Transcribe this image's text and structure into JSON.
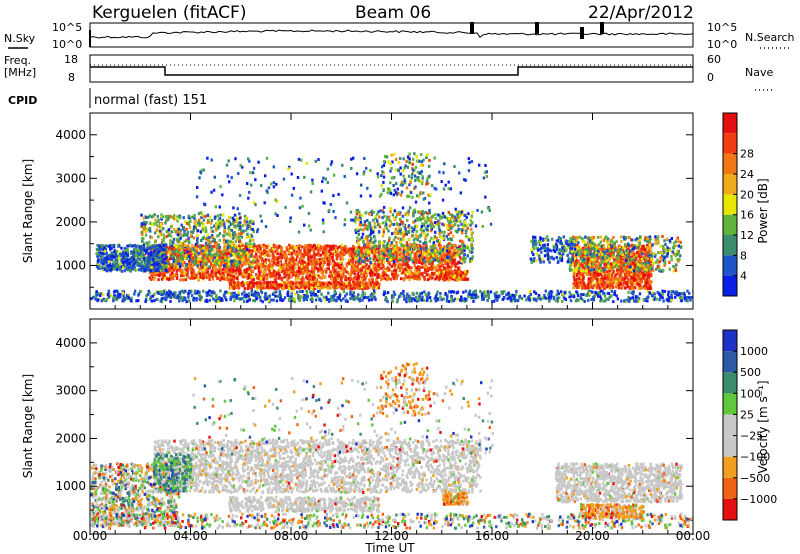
{
  "header": {
    "station": "Kerguelen (fitACF)",
    "beam": "Beam 06",
    "date": "22/Apr/2012"
  },
  "noise_panel": {
    "left_label": "N.Sky",
    "right_label": "N.Search",
    "ticks_left": [
      "10^5",
      "10^0"
    ],
    "ticks_right": [
      "10^5",
      "10^0"
    ]
  },
  "freq_panel": {
    "left_label_1": "Freq.",
    "left_label_2": "[MHz]",
    "right_label": "Nave",
    "ticks_left": [
      "18",
      "8"
    ],
    "ticks_right": [
      "60",
      "0"
    ]
  },
  "cpid": {
    "label": "CPID",
    "value": "normal (fast) 151"
  },
  "colors": {
    "power_scale": [
      "#0a1ee6",
      "#1f55c8",
      "#3c8c6e",
      "#5fb43c",
      "#e6e600",
      "#f0aa1e",
      "#f07814",
      "#f03c0f",
      "#e60f0f"
    ],
    "velocity_scale": [
      "#1e32c8",
      "#2d5aa5",
      "#3c8c6e",
      "#5fc83c",
      "#c8c8c8",
      "#c8c8c8",
      "#f0a01e",
      "#f06414",
      "#e60f0f"
    ]
  },
  "chart_data": [
    {
      "type": "heatmap",
      "title": "",
      "xlabel": "Time UT",
      "ylabel": "Slant Range [km]",
      "x_ticks": [
        "00:00",
        "04:00",
        "08:00",
        "12:00",
        "16:00",
        "20:00",
        "00:00"
      ],
      "y_ticks": [
        "1000",
        "2000",
        "3000",
        "4000"
      ],
      "ylim": [
        0,
        4500
      ],
      "colorbar": {
        "label": "Power [dB]",
        "ticks": [
          "4",
          "8",
          "12",
          "16",
          "20",
          "24",
          "28"
        ],
        "range": [
          0,
          30
        ]
      }
    },
    {
      "type": "heatmap",
      "title": "",
      "xlabel": "Time UT",
      "ylabel": "Slant Range [km]",
      "x_ticks": [
        "00:00",
        "04:00",
        "08:00",
        "12:00",
        "16:00",
        "20:00",
        "00:00"
      ],
      "y_ticks": [
        "1000",
        "2000",
        "3000",
        "4000"
      ],
      "ylim": [
        0,
        4500
      ],
      "colorbar": {
        "label": "Velocity [m s⁻¹]",
        "ticks": [
          "1000",
          "500",
          "100",
          "25",
          "−25",
          "−100",
          "−500",
          "−1000"
        ],
        "range": [
          1000,
          -1000
        ]
      }
    }
  ]
}
